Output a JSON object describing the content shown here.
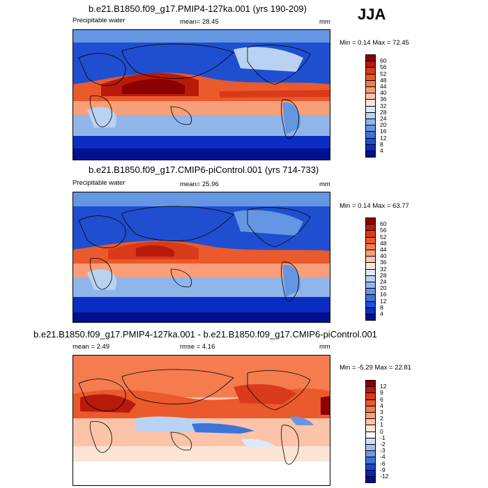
{
  "season": "JJA",
  "panels": [
    {
      "title": "b.e21.B1850.f09_g17.PMIP4-127ka.001 (yrs 190-209)",
      "left": "Precipitable water",
      "center": "mean=  28.45",
      "right": "mm",
      "minmax": "Min =   0.14 Max =  72.45",
      "cbar_labels": [
        "60",
        "56",
        "52",
        "48",
        "44",
        "40",
        "36",
        "32",
        "28",
        "24",
        "20",
        "16",
        "12",
        "8",
        "4"
      ],
      "cbar_colors": [
        "#8b0000",
        "#b81a0b",
        "#d93a1a",
        "#ea5a2d",
        "#f47c4e",
        "#f89e78",
        "#fbc3a8",
        "#fde4d6",
        "#dde9f8",
        "#b9d2f1",
        "#8fb5ea",
        "#6596e2",
        "#3d74da",
        "#1f4fd0",
        "#0a2ec3",
        "#00108f"
      ]
    },
    {
      "title": "b.e21.B1850.f09_g17.CMIP6-piControl.001 (yrs 714-733)",
      "left": "Precipitable water",
      "center": "mean=  25.96",
      "right": "mm",
      "minmax": "Min =   0.14 Max =  63.77",
      "cbar_labels": [
        "60",
        "56",
        "52",
        "48",
        "44",
        "40",
        "36",
        "32",
        "28",
        "24",
        "20",
        "16",
        "12",
        "8",
        "4"
      ],
      "cbar_colors": [
        "#8b0000",
        "#b81a0b",
        "#d93a1a",
        "#ea5a2d",
        "#f47c4e",
        "#f89e78",
        "#fbc3a8",
        "#fde4d6",
        "#dde9f8",
        "#b9d2f1",
        "#8fb5ea",
        "#6596e2",
        "#3d74da",
        "#1f4fd0",
        "#0a2ec3",
        "#00108f"
      ]
    },
    {
      "title": "b.e21.B1850.f09_g17.PMIP4-127ka.001 - b.e21.B1850.f09_g17.CMIP6-piControl.001",
      "left": "mean =   2.49",
      "center": "rmse =   4.16",
      "right": "mm",
      "minmax": "Min =  -5.29 Max =  22.81",
      "cbar_labels": [
        "12",
        "9",
        "6",
        "4",
        "3",
        "2",
        "1",
        "0",
        "-1",
        "-2",
        "-3",
        "-4",
        "-6",
        "-9",
        "-12"
      ],
      "cbar_colors": [
        "#8b0000",
        "#b81a0b",
        "#d93a1a",
        "#ea5a2d",
        "#f47c4e",
        "#f89e78",
        "#fbc3a8",
        "#fde4d6",
        "#ffffff",
        "#cfe0f6",
        "#9fc0ee",
        "#6f9be4",
        "#3f73d8",
        "#1a47c9",
        "#0a24b0",
        "#00108f"
      ]
    }
  ]
}
